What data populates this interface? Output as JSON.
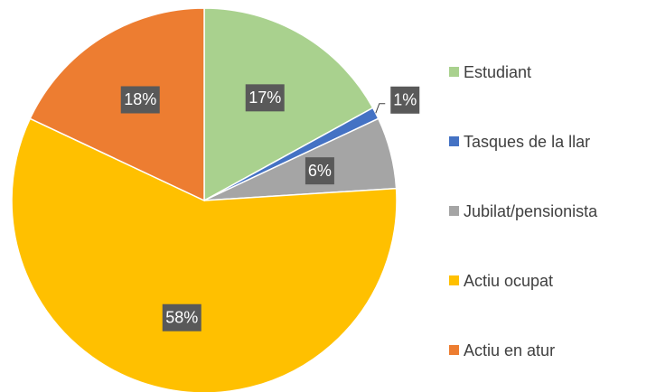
{
  "chart_data": {
    "type": "pie",
    "categories": [
      "Estudiant",
      "Tasques de la llar",
      "Jubilat/pensionista",
      "Actiu ocupat",
      "Actiu en atur"
    ],
    "values": [
      17,
      1,
      6,
      58,
      18
    ],
    "value_labels": [
      "17%",
      "1%",
      "6%",
      "58%",
      "18%"
    ],
    "colors": [
      "#a9d18e",
      "#4472c4",
      "#a5a5a5",
      "#ffc000",
      "#ed7d31"
    ],
    "legend": "right"
  }
}
